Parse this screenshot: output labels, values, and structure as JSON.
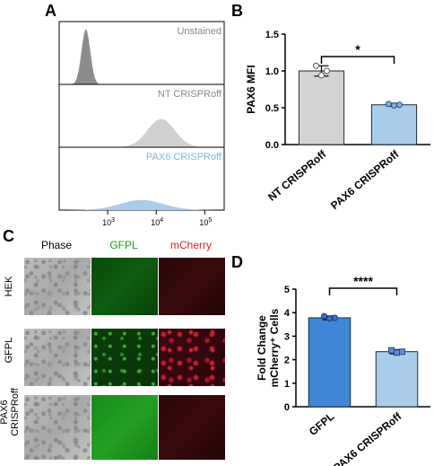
{
  "panels": {
    "a": "A",
    "b": "B",
    "c": "C",
    "d": "D"
  },
  "colors": {
    "grey": "#8c8c8c",
    "light_grey": "#d3d3d3",
    "light_blue": "#a9cdea",
    "blue": "#4a90d9",
    "bar_edge": "#1f3a5a",
    "green_text": "#1e9e1e",
    "red_text": "#e02020"
  },
  "chart_data": [
    {
      "type": "area",
      "panel": "A",
      "x_scale": "log",
      "x_ticks": [
        "10 3",
        "10 4",
        "10 5"
      ],
      "tracks": [
        {
          "name": "Unstained",
          "label_color": "#888888",
          "fill": "#8c8c8c",
          "peak_log10": 2.55
        },
        {
          "name": "NT CRISPRoff",
          "label_color": "#888888",
          "fill": "#d0d0d0",
          "peak_log10": 4.1
        },
        {
          "name": "PAX6 CRISPRoff",
          "label_color": "#7fb6e2",
          "fill": "#a9cdea",
          "peak_log10": 3.7
        }
      ]
    },
    {
      "type": "bar",
      "panel": "B",
      "categories": [
        "NT CRISPRoff",
        "PAX6 CRISPRoff"
      ],
      "values": [
        1.0,
        0.54
      ],
      "errors": [
        0.07,
        0.02
      ],
      "points": [
        [
          1.07,
          0.94,
          1.0
        ],
        [
          0.55,
          0.53,
          0.54
        ]
      ],
      "ylabel": "PAX6 MFI",
      "ylim": [
        0,
        1.5
      ],
      "yticks": [
        "0.0",
        "0.5",
        "1.0",
        "1.5"
      ],
      "significance": "*",
      "bar_colors": [
        "#d3d3d3",
        "#a9cdea"
      ]
    },
    {
      "type": "bar",
      "panel": "D",
      "categories": [
        "GFPL",
        "PAX6 CRISPRoff"
      ],
      "values": [
        3.78,
        2.34
      ],
      "errors": [
        0.08,
        0.09
      ],
      "points": [
        [
          3.85,
          3.75,
          3.78
        ],
        [
          2.4,
          2.3,
          2.34
        ]
      ],
      "ylabel": "Fold Change",
      "ylabel2": "mCherry⁺ Cells",
      "ylim": [
        0,
        5
      ],
      "yticks": [
        "0",
        "1",
        "2",
        "3",
        "4",
        "5"
      ],
      "significance": "****",
      "bar_colors": [
        "#3f87d6",
        "#a9cdea"
      ]
    }
  ],
  "micrographs": {
    "columns": [
      "Phase",
      "GFPL",
      "mCherry"
    ],
    "rows": [
      {
        "label": "HEK"
      },
      {
        "label": "GFPL"
      },
      {
        "label_line1": "PAX6",
        "label_line2": "CRISPRoff"
      }
    ]
  }
}
